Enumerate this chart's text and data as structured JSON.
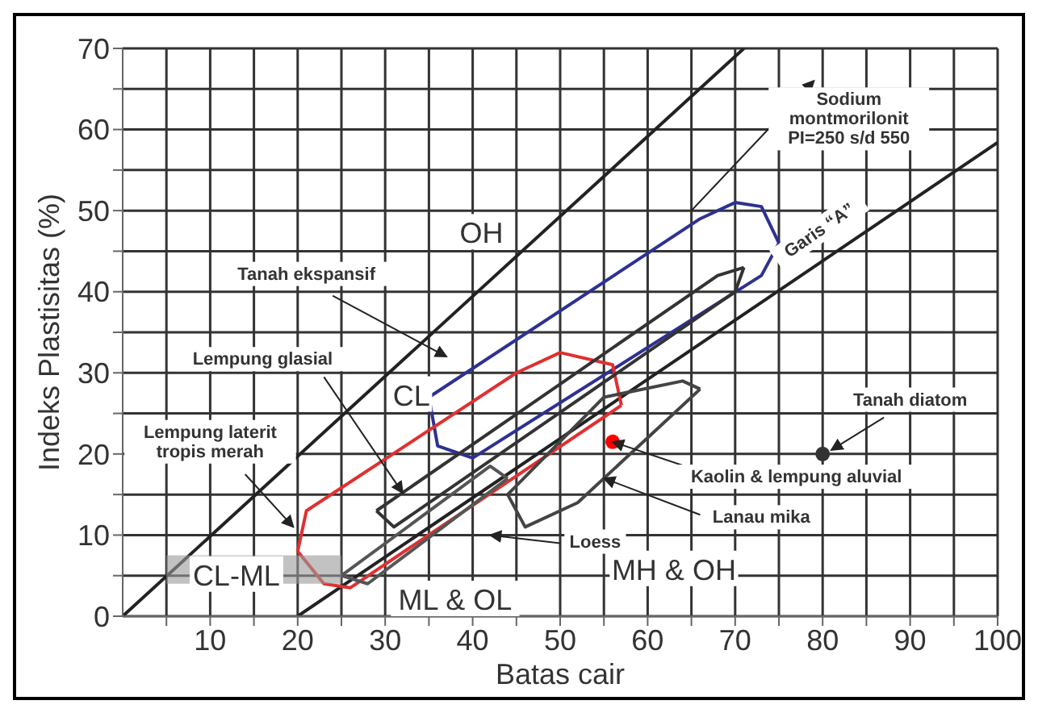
{
  "chart_data": {
    "type": "line",
    "xlabel": "Batas cair",
    "ylabel": "Indeks Plastisitas (%)",
    "xlim": [
      0,
      100
    ],
    "ylim": [
      0,
      70
    ],
    "xticks": [
      {
        "value": 5,
        "label": null
      },
      10,
      {
        "value": 15,
        "label": null
      },
      20,
      {
        "value": 25,
        "label": null
      },
      30,
      {
        "value": 35,
        "label": null
      },
      40,
      {
        "value": 45,
        "label": null
      },
      50,
      {
        "value": 55,
        "label": null
      },
      60,
      {
        "value": 65,
        "label": null
      },
      70,
      {
        "value": 75,
        "label": null
      },
      80,
      {
        "value": 85,
        "label": null
      },
      90,
      {
        "value": 95,
        "label": null
      },
      100
    ],
    "yticks": [
      0,
      {
        "value": 5,
        "label": null
      },
      10,
      {
        "value": 15,
        "label": null
      },
      20,
      {
        "value": 25,
        "label": null
      },
      30,
      {
        "value": 35,
        "label": null
      },
      40,
      {
        "value": 45,
        "label": null
      },
      50,
      {
        "value": 55,
        "label": null
      },
      60,
      {
        "value": 65,
        "label": null
      },
      70
    ],
    "grid": true,
    "line_style": "solid",
    "series": [
      {
        "color": "#222222",
        "x": [
          0,
          71
        ],
        "values": [
          0,
          70
        ]
      },
      {
        "color": "#222222",
        "x": [
          20,
          100
        ],
        "values": [
          0,
          58.4
        ]
      },
      {
        "color": "#2e3192",
        "x": [
          35,
          66,
          70,
          73,
          75
        ],
        "values": [
          27,
          49,
          51,
          50.5,
          46
        ]
      },
      {
        "color": "#2e3192",
        "x": [
          35,
          36,
          40,
          73,
          75
        ],
        "values": [
          27,
          21,
          19.5,
          42,
          46
        ]
      },
      {
        "color": "#e03030",
        "x": [
          20,
          21,
          45,
          50,
          56,
          57
        ],
        "values": [
          8,
          13,
          30,
          32.5,
          31,
          26
        ]
      },
      {
        "color": "#e03030",
        "x": [
          20,
          23,
          26,
          57
        ],
        "values": [
          8,
          4,
          3.5,
          26
        ]
      },
      {
        "color": "#333333",
        "x": [
          29,
          68,
          71
        ],
        "values": [
          13,
          42,
          43
        ]
      },
      {
        "color": "#333333",
        "x": [
          29,
          31,
          70,
          71
        ],
        "values": [
          13,
          11,
          40,
          43
        ]
      },
      {
        "color": "#555555",
        "x": [
          25,
          42,
          44
        ],
        "values": [
          5,
          18.5,
          17
        ]
      },
      {
        "color": "#555555",
        "x": [
          25,
          28,
          44
        ],
        "values": [
          5,
          4,
          17
        ]
      },
      {
        "color": "#444444",
        "x": [
          44,
          55,
          64,
          66
        ],
        "values": [
          15,
          27,
          29,
          28
        ]
      },
      {
        "color": "#444444",
        "x": [
          44,
          46,
          52,
          66
        ],
        "values": [
          15,
          11,
          14,
          28
        ]
      },
      {
        "type": "scatter",
        "color": "#ff0000",
        "x": [
          56
        ],
        "values": [
          21.5
        ]
      },
      {
        "type": "scatter",
        "color": "#333333",
        "x": [
          80
        ],
        "values": [
          20
        ]
      }
    ],
    "annotations": [
      "OH",
      "CL",
      "CL-ML",
      "ML & OL",
      "MH & OH",
      "Garis “A”",
      "Sodium\nmontmorilonit\nPI=250 s/d 550",
      "Tanah ekspansif",
      {
        "text": "Lempung glasial",
        "x": 32,
        "y": 15.2
      },
      "Lempung laterit\ntropis merah",
      "Loess",
      {
        "text": "Kaolin & lempung aluvial",
        "x": 56,
        "y": 21.5
      },
      {
        "text": "Lanau mika",
        "x": 55,
        "y": 17
      },
      "Tanah diatom"
    ]
  }
}
